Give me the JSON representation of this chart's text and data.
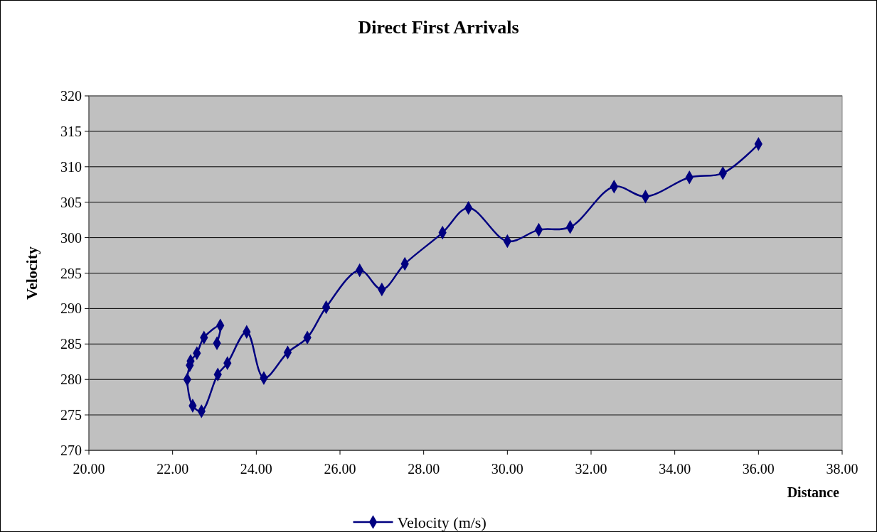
{
  "chart_data": {
    "type": "line",
    "title": "Direct First Arrivals",
    "xlabel": "Distance",
    "ylabel": "Velocity",
    "xlim": [
      20,
      38
    ],
    "xticks": [
      {
        "value": 20,
        "label": "20.00"
      },
      {
        "value": 22,
        "label": "22.00"
      },
      {
        "value": 24,
        "label": "24.00"
      },
      {
        "value": 26,
        "label": "26.00"
      },
      {
        "value": 28,
        "label": "28.00"
      },
      {
        "value": 30,
        "label": "30.00"
      },
      {
        "value": 32,
        "label": "32.00"
      },
      {
        "value": 34,
        "label": "34.00"
      },
      {
        "value": 36,
        "label": "36.00"
      },
      {
        "value": 38,
        "label": "38.00"
      }
    ],
    "ylim": [
      270,
      320
    ],
    "yticks": [
      270,
      275,
      280,
      285,
      290,
      295,
      300,
      305,
      310,
      315,
      320
    ],
    "grid": "y",
    "legend": "bottom",
    "marker": "diamond",
    "line_style": "solid",
    "series": [
      {
        "name": "Velocity (m/s)",
        "color": "#000080",
        "x": [
          23.06,
          23.14,
          22.75,
          22.58,
          22.43,
          22.41,
          22.35,
          22.48,
          22.69,
          23.08,
          23.31,
          23.77,
          24.18,
          24.75,
          25.22,
          25.67,
          26.47,
          27.0,
          27.55,
          28.45,
          29.07,
          30.0,
          30.75,
          31.5,
          32.55,
          33.3,
          34.35,
          35.15,
          36.0
        ],
        "values": [
          285.1,
          287.6,
          285.9,
          283.7,
          282.6,
          282.0,
          280.0,
          276.3,
          275.5,
          280.7,
          282.3,
          286.7,
          280.2,
          283.8,
          285.9,
          290.2,
          295.4,
          292.7,
          296.3,
          300.7,
          304.2,
          299.5,
          301.1,
          301.5,
          307.2,
          305.8,
          308.5,
          309.1,
          313.2
        ]
      }
    ]
  }
}
